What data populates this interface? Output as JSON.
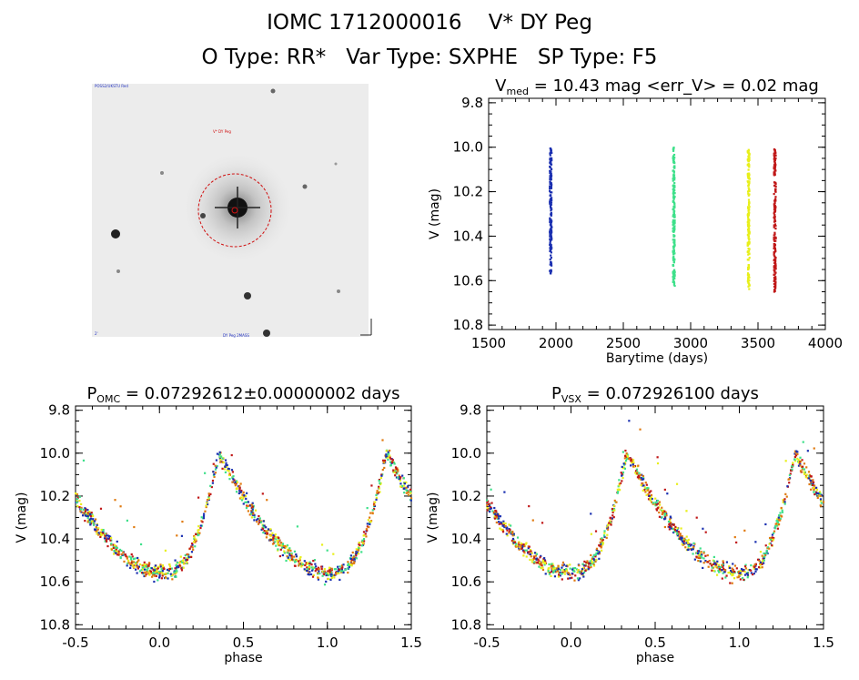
{
  "header": {
    "title": "IOMC 1712000016    V* DY Peg",
    "subtitle": "O Type: RR*   Var Type: SXPHE   SP Type: F5"
  },
  "sky_image": {
    "top_left_label": "POSS2/UKSTU Red",
    "star_label": "V* DY Peg",
    "bottom_left_label": "2'",
    "bottom_center_label": "DY Peg 2MASS"
  },
  "chart_data": [
    {
      "type": "scatter",
      "title_parts": [
        "V",
        "med",
        " = 10.43 mag <err_V> = 0.02 mag"
      ],
      "xlabel": "Barytime (days)",
      "ylabel": "V (mag)",
      "xlim": [
        1500,
        4000
      ],
      "ylim": [
        10.82,
        9.78
      ],
      "y_inverted": true,
      "xticks": [
        "1500",
        "2000",
        "2500",
        "3000",
        "3500",
        "4000"
      ],
      "yticks": [
        "9.8",
        "10.0",
        "10.2",
        "10.4",
        "10.6",
        "10.8"
      ],
      "series": [
        {
          "color": "#1a2fb0",
          "x_center": 1960,
          "ymin": 10.0,
          "ymax": 10.57
        },
        {
          "color": "#3ee08a",
          "x_center": 2875,
          "ymin": 10.0,
          "ymax": 10.63
        },
        {
          "color": "#e8ef1a",
          "x_center": 3430,
          "ymin": 10.01,
          "ymax": 10.64
        },
        {
          "color": "#c01818",
          "x_center": 3625,
          "ymin": 10.0,
          "ymax": 10.65
        }
      ]
    },
    {
      "type": "scatter",
      "title_parts": [
        "P",
        "OMC",
        " = 0.07292612±0.00000002 days"
      ],
      "xlabel": "phase",
      "ylabel": "V (mag)",
      "xlim": [
        -0.5,
        1.5
      ],
      "ylim": [
        10.82,
        9.78
      ],
      "y_inverted": true,
      "xticks": [
        "-0.5",
        "0.0",
        "0.5",
        "1.0",
        "1.5"
      ],
      "yticks": [
        "9.8",
        "10.0",
        "10.2",
        "10.4",
        "10.6",
        "10.8"
      ],
      "light_curve": {
        "max_phase": 0.35,
        "min_phase": 0.02,
        "mag_max": 10.0,
        "mag_min": 10.56
      }
    },
    {
      "type": "scatter",
      "title_parts": [
        "P",
        "VSX",
        " = 0.072926100 days"
      ],
      "xlabel": "phase",
      "ylabel": "V (mag)",
      "xlim": [
        -0.5,
        1.5
      ],
      "ylim": [
        10.82,
        9.78
      ],
      "y_inverted": true,
      "xticks": [
        "-0.5",
        "0.0",
        "0.5",
        "1.0",
        "1.5"
      ],
      "yticks": [
        "9.8",
        "10.0",
        "10.2",
        "10.4",
        "10.6",
        "10.8"
      ],
      "light_curve": {
        "max_phase": 0.33,
        "min_phase": 0.0,
        "mag_max": 10.0,
        "mag_min": 10.56
      }
    }
  ]
}
